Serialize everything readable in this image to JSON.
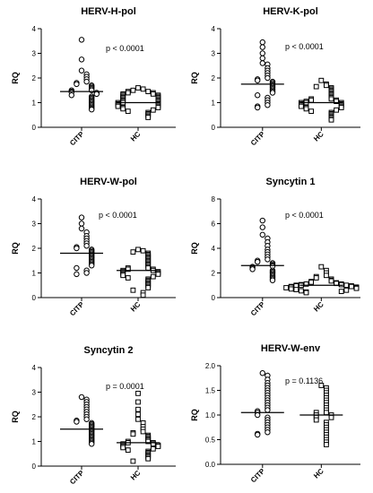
{
  "figure": {
    "background": "#ffffff",
    "ink": "#000000"
  },
  "chart_data": [
    {
      "type": "scatter",
      "title": "HERV-H-pol",
      "ylabel": "RQ",
      "ylim": [
        0,
        4
      ],
      "yticks": [
        0,
        1,
        2,
        3,
        4
      ],
      "categories": [
        "CITP",
        "HC"
      ],
      "annotation": "p < 0.0001",
      "series": [
        {
          "marker": "circle",
          "median": 1.45,
          "values": [
            3.55,
            2.75,
            2.3,
            2.15,
            2.05,
            1.95,
            1.85,
            1.8,
            1.75,
            1.7,
            1.65,
            1.6,
            1.55,
            1.5,
            1.5,
            1.45,
            1.42,
            1.4,
            1.35,
            1.3,
            1.25,
            1.2,
            1.15,
            1.1,
            1.05,
            1.0,
            0.95,
            0.9,
            0.85,
            0.8,
            0.75,
            0.72
          ]
        },
        {
          "marker": "square",
          "median": 1.0,
          "values": [
            1.6,
            1.55,
            1.5,
            1.45,
            1.45,
            1.4,
            1.4,
            1.35,
            1.35,
            1.3,
            1.3,
            1.25,
            1.25,
            1.2,
            1.2,
            1.15,
            1.15,
            1.1,
            1.1,
            1.05,
            1.05,
            1.0,
            1.0,
            1.0,
            0.95,
            0.95,
            0.9,
            0.9,
            0.85,
            0.85,
            0.8,
            0.8,
            0.75,
            0.7,
            0.65,
            0.6,
            0.55,
            0.5,
            0.45,
            0.4
          ]
        }
      ]
    },
    {
      "type": "scatter",
      "title": "HERV-K-pol",
      "ylabel": "RQ",
      "ylim": [
        0,
        4
      ],
      "yticks": [
        0,
        1,
        2,
        3,
        4
      ],
      "categories": [
        "CITP",
        "HC"
      ],
      "annotation": "p < 0.0001",
      "series": [
        {
          "marker": "circle",
          "median": 1.75,
          "values": [
            3.45,
            3.25,
            3.0,
            2.8,
            2.6,
            2.55,
            2.4,
            2.3,
            2.2,
            2.1,
            2.0,
            1.95,
            1.9,
            1.85,
            1.8,
            1.75,
            1.7,
            1.65,
            1.6,
            1.55,
            1.5,
            1.45,
            1.4,
            1.3,
            1.2,
            1.1,
            1.0,
            0.9,
            0.85,
            0.8
          ]
        },
        {
          "marker": "square",
          "median": 1.0,
          "values": [
            1.9,
            1.75,
            1.7,
            1.65,
            1.6,
            1.55,
            1.5,
            1.45,
            1.4,
            1.35,
            1.3,
            1.25,
            1.2,
            1.15,
            1.15,
            1.1,
            1.1,
            1.05,
            1.05,
            1.0,
            1.0,
            1.0,
            0.95,
            0.95,
            0.9,
            0.9,
            0.85,
            0.85,
            0.8,
            0.8,
            0.75,
            0.7,
            0.65,
            0.6,
            0.55,
            0.5,
            0.45,
            0.4,
            0.35,
            0.3
          ]
        }
      ]
    },
    {
      "type": "scatter",
      "title": "HERV-W-pol",
      "ylabel": "RQ",
      "ylim": [
        0,
        4
      ],
      "yticks": [
        0,
        1,
        2,
        3,
        4
      ],
      "categories": [
        "CITP",
        "HC"
      ],
      "annotation": "p < 0.0001",
      "series": [
        {
          "marker": "circle",
          "median": 1.8,
          "values": [
            3.25,
            3.0,
            2.8,
            2.65,
            2.5,
            2.4,
            2.3,
            2.2,
            2.1,
            2.05,
            2.0,
            1.95,
            1.9,
            1.85,
            1.8,
            1.75,
            1.7,
            1.65,
            1.6,
            1.55,
            1.5,
            1.45,
            1.4,
            1.35,
            1.3,
            1.2,
            1.1,
            1.0,
            0.95
          ]
        },
        {
          "marker": "square",
          "median": 1.1,
          "values": [
            1.95,
            1.9,
            1.85,
            1.8,
            1.75,
            1.7,
            1.65,
            1.6,
            1.55,
            1.5,
            1.45,
            1.4,
            1.35,
            1.3,
            1.25,
            1.2,
            1.2,
            1.15,
            1.15,
            1.1,
            1.1,
            1.05,
            1.05,
            1.0,
            1.0,
            0.95,
            0.95,
            0.9,
            0.85,
            0.8,
            0.75,
            0.7,
            0.65,
            0.6,
            0.55,
            0.5,
            0.45,
            0.4,
            0.3,
            0.2,
            0.1
          ]
        }
      ]
    },
    {
      "type": "scatter",
      "title": "Syncytin 1",
      "ylabel": "RQ",
      "ylim": [
        0,
        8
      ],
      "yticks": [
        0,
        2,
        4,
        6,
        8
      ],
      "categories": [
        "CITP",
        "HC"
      ],
      "annotation": "p < 0.0001",
      "series": [
        {
          "marker": "circle",
          "median": 2.6,
          "values": [
            6.25,
            5.7,
            5.1,
            4.8,
            4.5,
            4.2,
            3.9,
            3.7,
            3.5,
            3.3,
            3.1,
            3.0,
            2.9,
            2.8,
            2.7,
            2.6,
            2.55,
            2.5,
            2.4,
            2.3,
            2.2,
            2.1,
            2.0,
            1.9,
            1.8,
            1.7,
            1.6,
            1.5,
            1.4
          ]
        },
        {
          "marker": "square",
          "median": 1.0,
          "values": [
            2.5,
            2.2,
            2.0,
            1.8,
            1.7,
            1.6,
            1.5,
            1.4,
            1.35,
            1.3,
            1.25,
            1.2,
            1.15,
            1.1,
            1.1,
            1.05,
            1.05,
            1.0,
            1.0,
            1.0,
            0.95,
            0.95,
            0.9,
            0.9,
            0.85,
            0.85,
            0.8,
            0.8,
            0.75,
            0.7,
            0.65,
            0.6,
            0.55,
            0.5,
            0.45,
            0.4
          ]
        }
      ]
    },
    {
      "type": "scatter",
      "title": "Syncytin 2",
      "ylabel": "RQ",
      "ylim": [
        0,
        4
      ],
      "yticks": [
        0,
        1,
        2,
        3,
        4
      ],
      "categories": [
        "CITP",
        "HC"
      ],
      "annotation": "p = 0.0001",
      "series": [
        {
          "marker": "circle",
          "median": 1.5,
          "values": [
            2.8,
            2.7,
            2.6,
            2.5,
            2.4,
            2.3,
            2.2,
            2.1,
            2.0,
            1.9,
            1.85,
            1.8,
            1.75,
            1.7,
            1.65,
            1.6,
            1.55,
            1.5,
            1.45,
            1.4,
            1.35,
            1.3,
            1.25,
            1.2,
            1.15,
            1.1,
            1.05,
            1.0,
            0.95,
            0.9
          ]
        },
        {
          "marker": "square",
          "median": 0.95,
          "values": [
            2.95,
            2.6,
            2.3,
            2.1,
            1.9,
            1.75,
            1.6,
            1.5,
            1.4,
            1.35,
            1.3,
            1.25,
            1.2,
            1.15,
            1.1,
            1.05,
            1.0,
            1.0,
            0.95,
            0.95,
            0.9,
            0.9,
            0.85,
            0.85,
            0.8,
            0.8,
            0.75,
            0.7,
            0.65,
            0.6,
            0.55,
            0.5,
            0.45,
            0.4,
            0.35,
            0.3,
            0.2
          ]
        }
      ]
    },
    {
      "type": "scatter",
      "title": "HERV-W-env",
      "ylabel": "RQ",
      "ylim": [
        0,
        2
      ],
      "yticks": [
        0.0,
        0.5,
        1.0,
        1.5,
        2.0
      ],
      "yticklabels": [
        "0.0",
        "0.5",
        "1.0",
        "1.5",
        "2.0"
      ],
      "categories": [
        "CITP",
        "HC"
      ],
      "annotation": "p = 0.1136",
      "series": [
        {
          "marker": "circle",
          "median": 1.05,
          "values": [
            1.85,
            1.8,
            1.72,
            1.65,
            1.6,
            1.55,
            1.5,
            1.45,
            1.4,
            1.35,
            1.3,
            1.25,
            1.2,
            1.15,
            1.1,
            1.08,
            1.05,
            1.0,
            0.95,
            0.9,
            0.85,
            0.8,
            0.75,
            0.7,
            0.65,
            0.62,
            0.6
          ]
        },
        {
          "marker": "square",
          "median": 1.0,
          "values": [
            1.6,
            1.55,
            1.5,
            1.45,
            1.4,
            1.35,
            1.3,
            1.25,
            1.2,
            1.15,
            1.1,
            1.05,
            1.05,
            1.0,
            1.0,
            0.95,
            0.95,
            0.9,
            0.85,
            0.8,
            0.75,
            0.7,
            0.65,
            0.6,
            0.55,
            0.5,
            0.45,
            0.4
          ]
        }
      ]
    }
  ]
}
